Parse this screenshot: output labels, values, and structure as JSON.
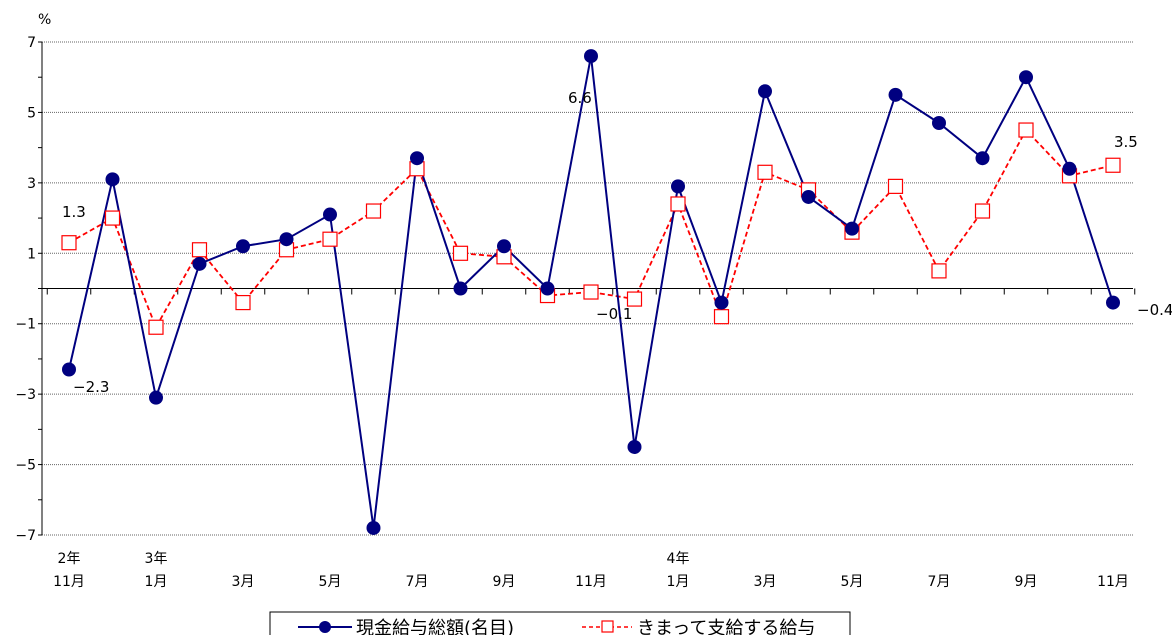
{
  "chart_data": {
    "type": "line",
    "y_unit": "%",
    "ylim": [
      -7,
      7
    ],
    "y_ticks": [
      "7",
      "5",
      "3",
      "1",
      "-1",
      "-3",
      "-5",
      "-7"
    ],
    "x_labels": [
      {
        "year": "2年",
        "month": "11月"
      },
      {
        "year": "3年",
        "month": "1月"
      },
      {
        "month": "3月"
      },
      {
        "month": "5月"
      },
      {
        "month": "7月"
      },
      {
        "month": "9月"
      },
      {
        "month": "11月"
      },
      {
        "year": "4年",
        "month": "1月"
      },
      {
        "month": "3月"
      },
      {
        "month": "5月"
      },
      {
        "month": "7月"
      },
      {
        "month": "9月"
      },
      {
        "month": "11月"
      }
    ],
    "x_label_positions": [
      0,
      2,
      4,
      6,
      8,
      10,
      12,
      14,
      16,
      18,
      20,
      22,
      24
    ],
    "grid": true,
    "legend_position": "bottom",
    "series": [
      {
        "name": "現金給与総額(名目)",
        "color": "#000080",
        "marker": "filled-circle",
        "line_style": "solid",
        "values": [
          -2.3,
          3.1,
          -3.1,
          0.7,
          1.2,
          1.4,
          2.1,
          -6.8,
          3.7,
          0.0,
          1.2,
          0.0,
          6.6,
          -4.5,
          2.9,
          -0.4,
          5.6,
          2.6,
          1.7,
          5.5,
          4.7,
          3.7,
          6.0,
          3.4,
          -0.4
        ]
      },
      {
        "name": "きまって支給する給与",
        "color": "#ff0000",
        "marker": "open-square",
        "line_style": "dashed",
        "values": [
          1.3,
          2.0,
          -1.1,
          1.1,
          -0.4,
          1.1,
          1.4,
          2.2,
          3.4,
          1.0,
          0.9,
          -0.2,
          -0.1,
          -0.3,
          2.4,
          -0.8,
          3.3,
          2.8,
          1.6,
          2.9,
          0.5,
          2.2,
          4.5,
          3.2,
          3.5
        ]
      }
    ],
    "data_labels": [
      {
        "text": "−2.3"
      },
      {
        "text": "1.3"
      },
      {
        "text": "6.6"
      },
      {
        "text": "−0.1"
      },
      {
        "text": "3.5"
      },
      {
        "text": "−0.4"
      }
    ]
  }
}
